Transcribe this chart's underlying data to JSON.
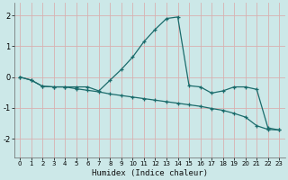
{
  "xlabel": "Humidex (Indice chaleur)",
  "xlim": [
    -0.5,
    23.5
  ],
  "ylim": [
    -2.6,
    2.4
  ],
  "yticks": [
    -2,
    -1,
    0,
    1,
    2
  ],
  "xticks": [
    0,
    1,
    2,
    3,
    4,
    5,
    6,
    7,
    8,
    9,
    10,
    11,
    12,
    13,
    14,
    15,
    16,
    17,
    18,
    19,
    20,
    21,
    22,
    23
  ],
  "bg_color": "#cce8e8",
  "grid_color": "#aacfcf",
  "line_color": "#1a6b6b",
  "line1_x": [
    0,
    1,
    2,
    3,
    4,
    5,
    6,
    7,
    8,
    9,
    10,
    11,
    12,
    13,
    14,
    15,
    16,
    17,
    18,
    19,
    20,
    21,
    22,
    23
  ],
  "line1_y": [
    0.0,
    -0.1,
    -0.3,
    -0.32,
    -0.32,
    -0.38,
    -0.43,
    -0.48,
    -0.55,
    -0.6,
    -0.65,
    -0.7,
    -0.75,
    -0.8,
    -0.85,
    -0.9,
    -0.95,
    -1.02,
    -1.08,
    -1.18,
    -1.3,
    -1.58,
    -1.7,
    -1.72
  ],
  "line2_x": [
    0,
    1,
    2,
    3,
    4,
    5,
    6,
    7,
    8,
    9,
    10,
    11,
    12,
    13,
    14,
    15,
    16,
    17,
    18,
    19,
    20,
    21,
    22,
    23
  ],
  "line2_y": [
    0.0,
    -0.1,
    -0.3,
    -0.32,
    -0.32,
    -0.32,
    -0.32,
    -0.45,
    -0.1,
    0.25,
    0.65,
    1.15,
    1.55,
    1.9,
    1.95,
    -0.28,
    -0.32,
    -0.52,
    -0.45,
    -0.32,
    -0.32,
    -0.4,
    -1.65,
    -1.72
  ],
  "marker": "+"
}
